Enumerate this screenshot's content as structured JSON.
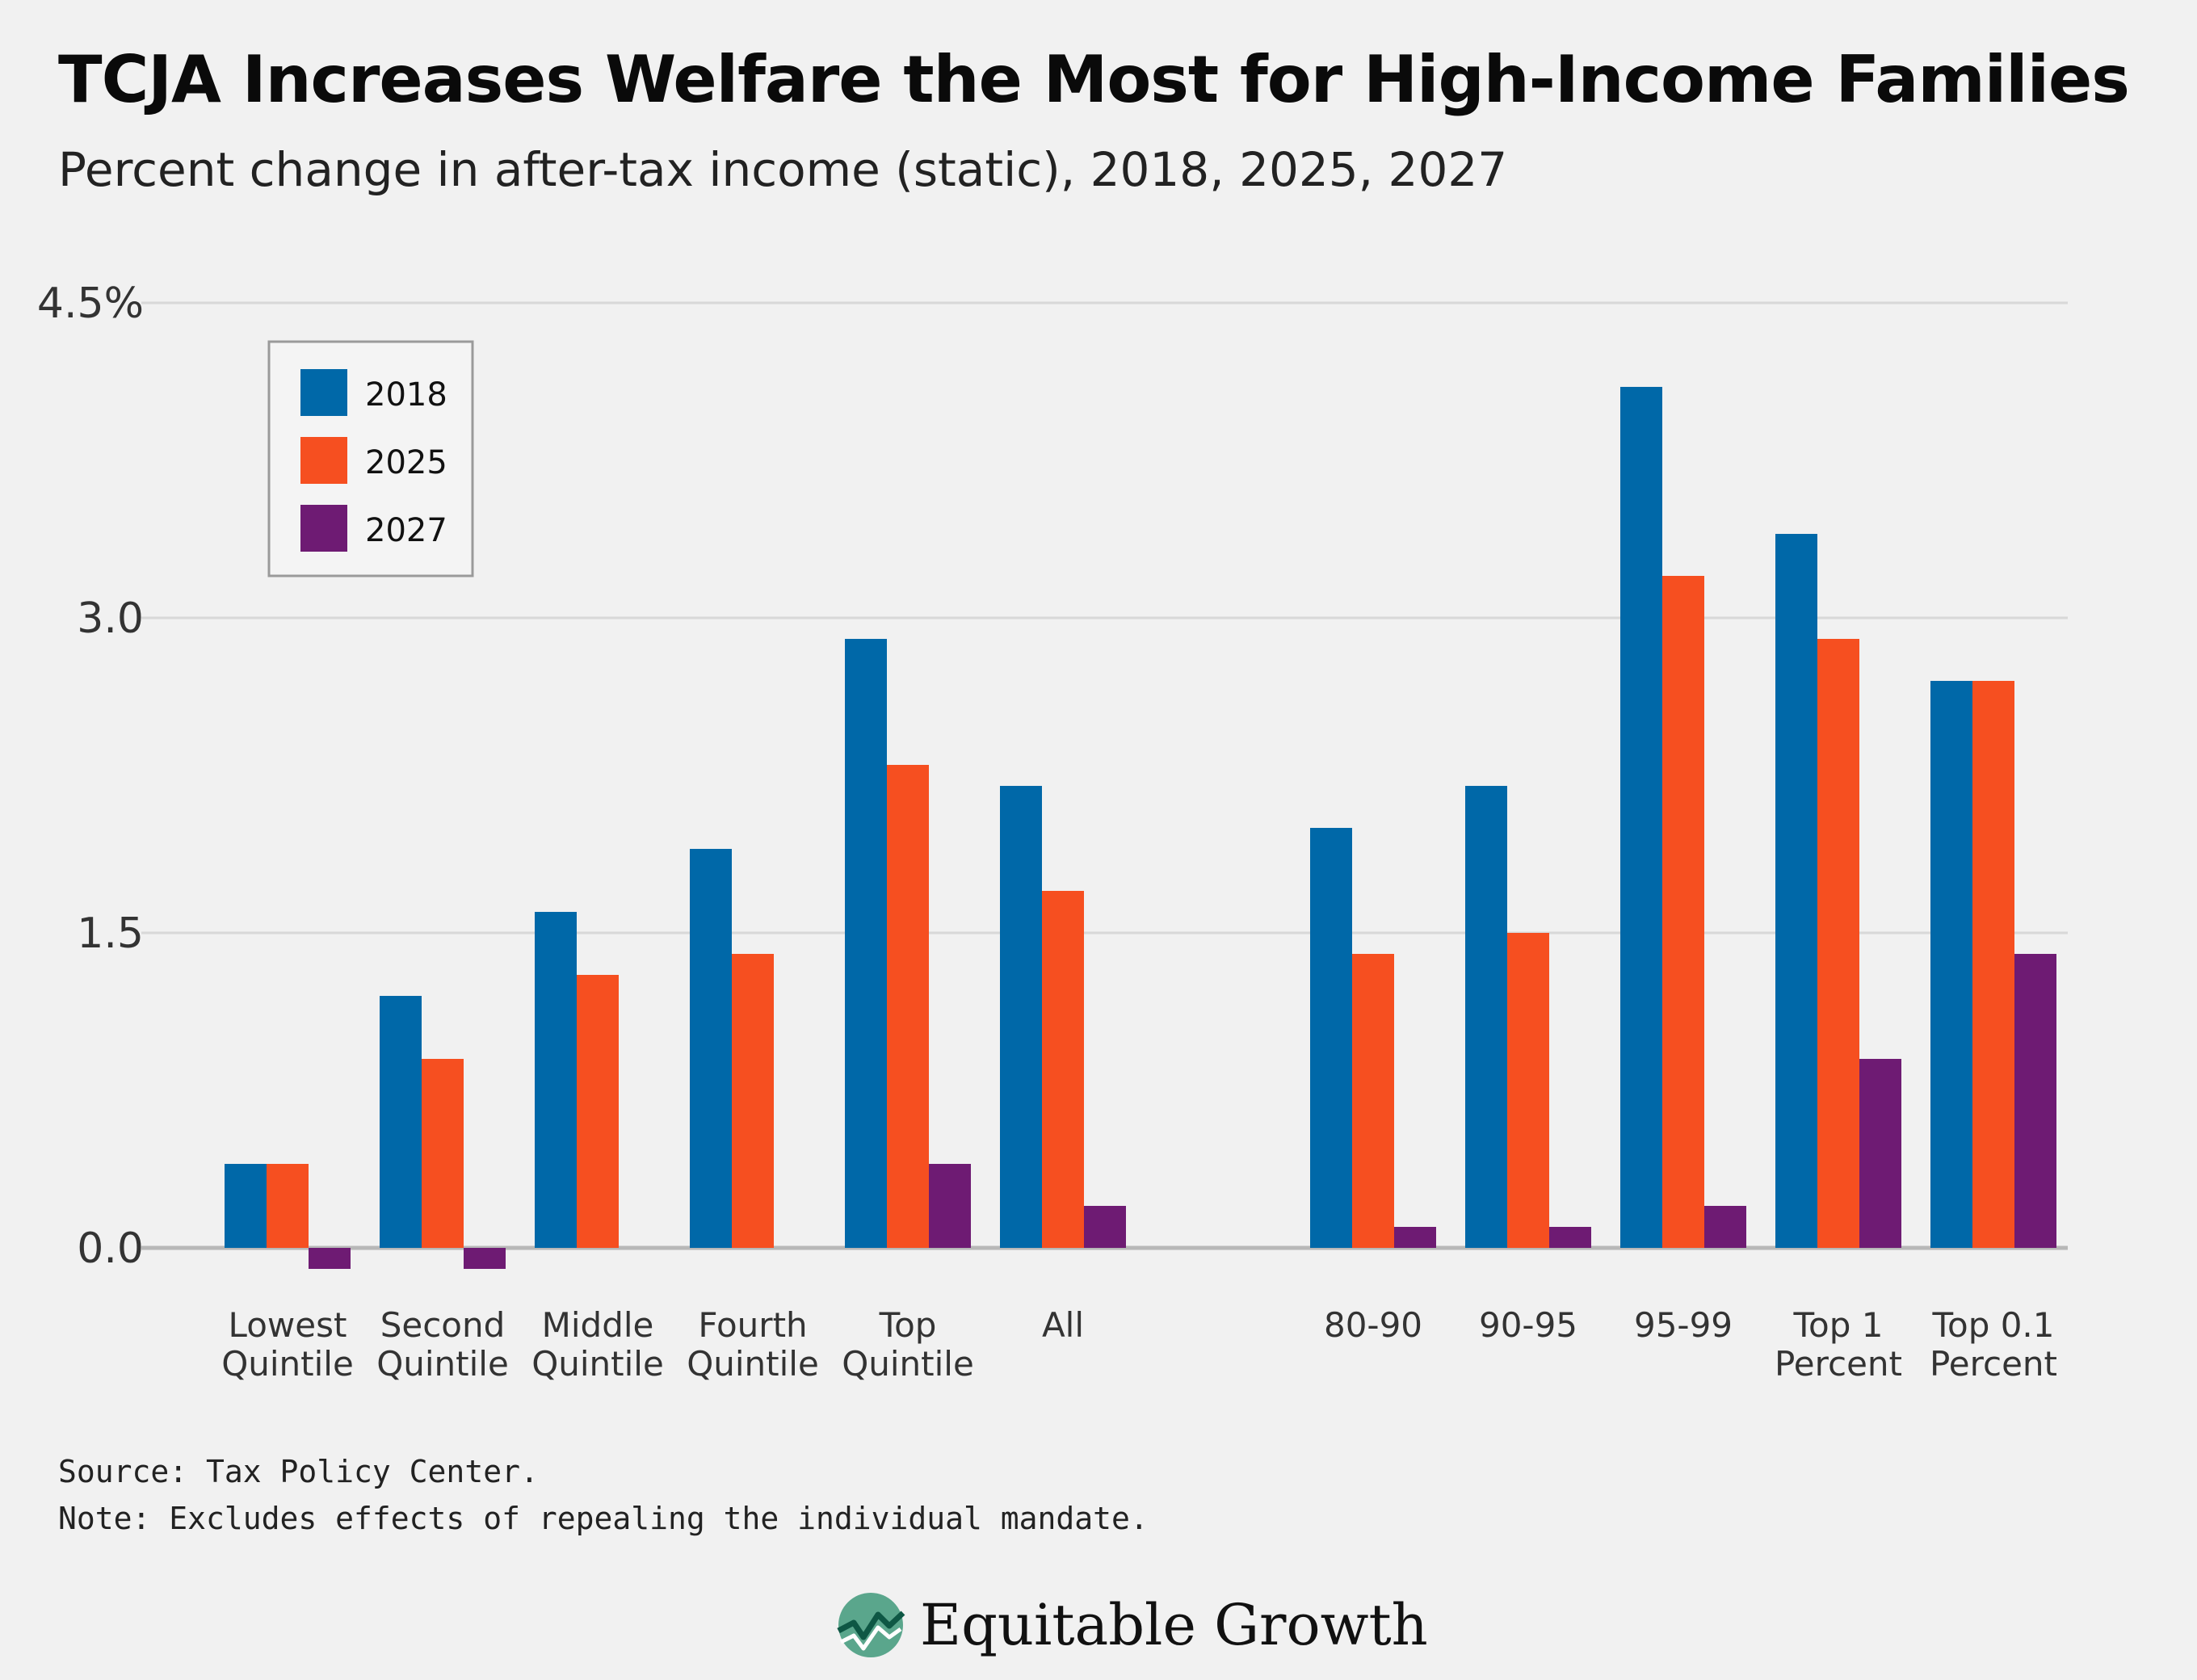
{
  "title": "TCJA Increases Welfare the Most for High-Income Families",
  "subtitle": "Percent change in after-tax income (static), 2018, 2025, 2027",
  "source": "Source: Tax Policy Center.",
  "note": "Note: Excludes effects of repealing the individual mandate.",
  "logo_text": "Equitable Growth",
  "colors": {
    "s2018": "#0068a8",
    "s2025": "#f64f20",
    "s2027": "#6e1b73",
    "background": "#f1f1f1",
    "grid": "#d8d8d8"
  },
  "chart_data": {
    "type": "bar",
    "ylim": [
      0,
      4.5
    ],
    "yticks": [
      "0.0",
      "1.5",
      "3.0",
      "4.5%"
    ],
    "ytick_values": [
      0,
      1.5,
      3.0,
      4.5
    ],
    "legend_position": "top-left",
    "grid": true,
    "categories": [
      [
        "Lowest",
        "Quintile"
      ],
      [
        "Second",
        "Quintile"
      ],
      [
        "Middle",
        "Quintile"
      ],
      [
        "Fourth",
        "Quintile"
      ],
      [
        "Top",
        "Quintile"
      ],
      [
        "All"
      ],
      [
        "80-90"
      ],
      [
        "90-95"
      ],
      [
        "95-99"
      ],
      [
        "Top 1",
        "Percent"
      ],
      [
        "Top 0.1",
        "Percent"
      ]
    ],
    "series": [
      {
        "name": "2018",
        "values": [
          0.4,
          1.2,
          1.6,
          1.9,
          2.9,
          2.2,
          2.0,
          2.2,
          4.1,
          3.4,
          2.7
        ]
      },
      {
        "name": "2025",
        "values": [
          0.4,
          0.9,
          1.3,
          1.4,
          2.3,
          1.7,
          1.4,
          1.5,
          3.2,
          2.9,
          2.7
        ]
      },
      {
        "name": "2027",
        "values": [
          -0.1,
          -0.1,
          0,
          0,
          0.4,
          0.2,
          0.1,
          0.1,
          0.2,
          0.9,
          1.4
        ]
      }
    ]
  }
}
